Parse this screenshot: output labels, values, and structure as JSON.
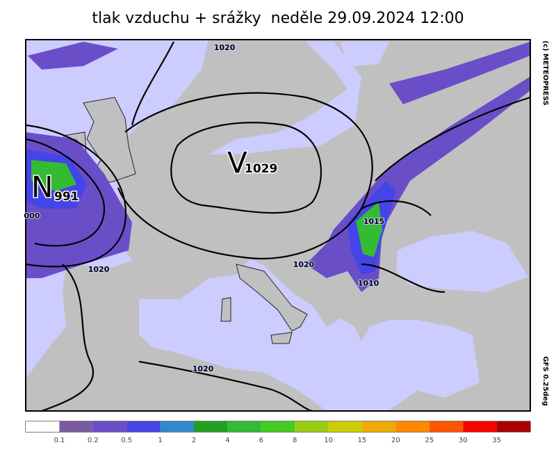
{
  "title": "tlak vzduchu + srážky  neděle 29.09.2024 12:00",
  "copyright": "(c) METEOPRESS",
  "model": "GFS 0.25deg",
  "pressure_centers": [
    {
      "letter": "V",
      "value": "1029"
    },
    {
      "letter": "N",
      "value": "991"
    }
  ],
  "isobar_labels": [
    "1020",
    "1020",
    "1020",
    "1020",
    "1015",
    "1010",
    "000"
  ],
  "legend": {
    "colors": [
      "#ffffff",
      "#7a5aa0",
      "#6a4ec8",
      "#4444e8",
      "#3388cc",
      "#22a022",
      "#33bb33",
      "#44cc22",
      "#99cc11",
      "#cccc00",
      "#eeaa00",
      "#ff8800",
      "#ff5500",
      "#ff0000",
      "#aa0000"
    ],
    "labels": [
      "0.1",
      "0.2",
      "0.5",
      "1",
      "2",
      "4",
      "6",
      "8",
      "10",
      "15",
      "20",
      "25",
      "30",
      "35"
    ]
  }
}
